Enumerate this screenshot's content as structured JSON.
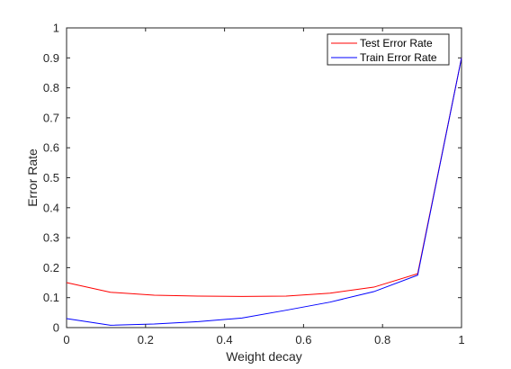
{
  "chart_data": {
    "type": "line",
    "title": "",
    "xlabel": "Weight decay",
    "ylabel": "Error Rate",
    "xlim": [
      0,
      1
    ],
    "ylim": [
      0,
      1
    ],
    "xticks": [
      "0",
      "0.2",
      "0.4",
      "0.6",
      "0.8",
      "1"
    ],
    "yticks": [
      "0",
      "0.1",
      "0.2",
      "0.3",
      "0.4",
      "0.5",
      "0.6",
      "0.7",
      "0.8",
      "0.9",
      "1"
    ],
    "grid": false,
    "legend_position": "top-right",
    "series": [
      {
        "name": "Test Error Rate",
        "color": "#ff0000",
        "x": [
          0,
          0.111,
          0.222,
          0.333,
          0.444,
          0.556,
          0.667,
          0.778,
          0.889,
          1.0
        ],
        "y": [
          0.15,
          0.118,
          0.108,
          0.105,
          0.104,
          0.105,
          0.115,
          0.135,
          0.18,
          0.9
        ]
      },
      {
        "name": "Train Error Rate",
        "color": "#0000ff",
        "x": [
          0,
          0.111,
          0.222,
          0.333,
          0.444,
          0.556,
          0.667,
          0.778,
          0.889,
          1.0
        ],
        "y": [
          0.03,
          0.008,
          0.012,
          0.02,
          0.032,
          0.058,
          0.085,
          0.12,
          0.175,
          0.9
        ]
      }
    ]
  }
}
